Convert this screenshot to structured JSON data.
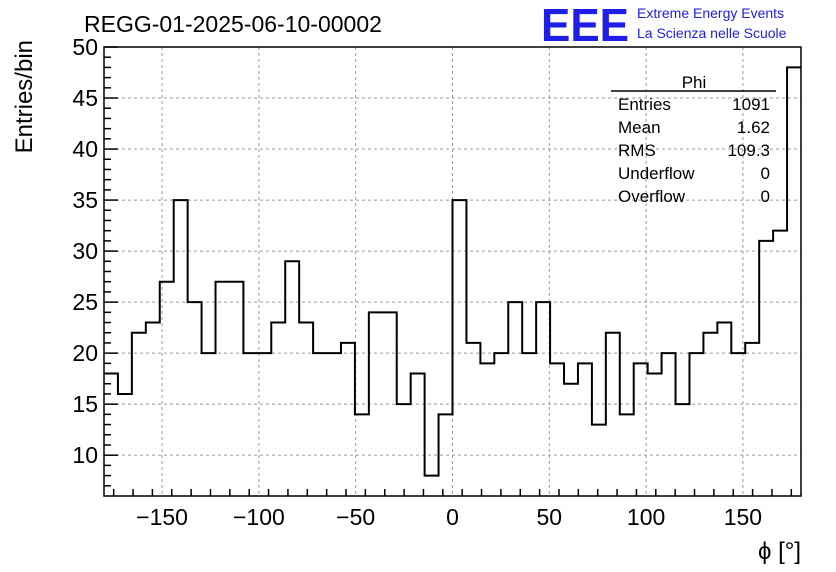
{
  "chart_data": {
    "type": "histogram",
    "title": "REGG-01-2025-06-10-00002",
    "xlabel": "ϕ [°]",
    "ylabel": "Entries/bin",
    "xlim": [
      -180,
      180
    ],
    "ylim": [
      6,
      50
    ],
    "bin_width": 7.2,
    "x_ticks": [
      -150,
      -100,
      -50,
      0,
      50,
      100,
      150
    ],
    "x_tick_labels": [
      "−150",
      "−100",
      "−50",
      "0",
      "50",
      "100",
      "150"
    ],
    "y_ticks": [
      10,
      15,
      20,
      25,
      30,
      35,
      40,
      45,
      50
    ],
    "y_tick_labels": [
      "10",
      "15",
      "20",
      "25",
      "30",
      "35",
      "40",
      "45",
      "50"
    ],
    "values": [
      18,
      16,
      22,
      23,
      27,
      35,
      25,
      20,
      27,
      27,
      20,
      20,
      23,
      29,
      23,
      20,
      20,
      21,
      14,
      24,
      24,
      15,
      18,
      8,
      14,
      35,
      21,
      19,
      20,
      25,
      20,
      25,
      19,
      17,
      19,
      13,
      22,
      14,
      19,
      18,
      20,
      15,
      20,
      22,
      23,
      20,
      21,
      31,
      32,
      48
    ],
    "grid": true,
    "stats_box": {
      "name": "Phi",
      "rows": [
        {
          "label": "Entries",
          "value": "1091"
        },
        {
          "label": "Mean",
          "value": "1.62"
        },
        {
          "label": "RMS",
          "value": "109.3"
        },
        {
          "label": "Underflow",
          "value": "0"
        },
        {
          "label": "Overflow",
          "value": "0"
        }
      ]
    }
  },
  "logo": {
    "mark": "EEE",
    "line1": "Extreme Energy Events",
    "line2": "La Scienza nelle Scuole"
  }
}
